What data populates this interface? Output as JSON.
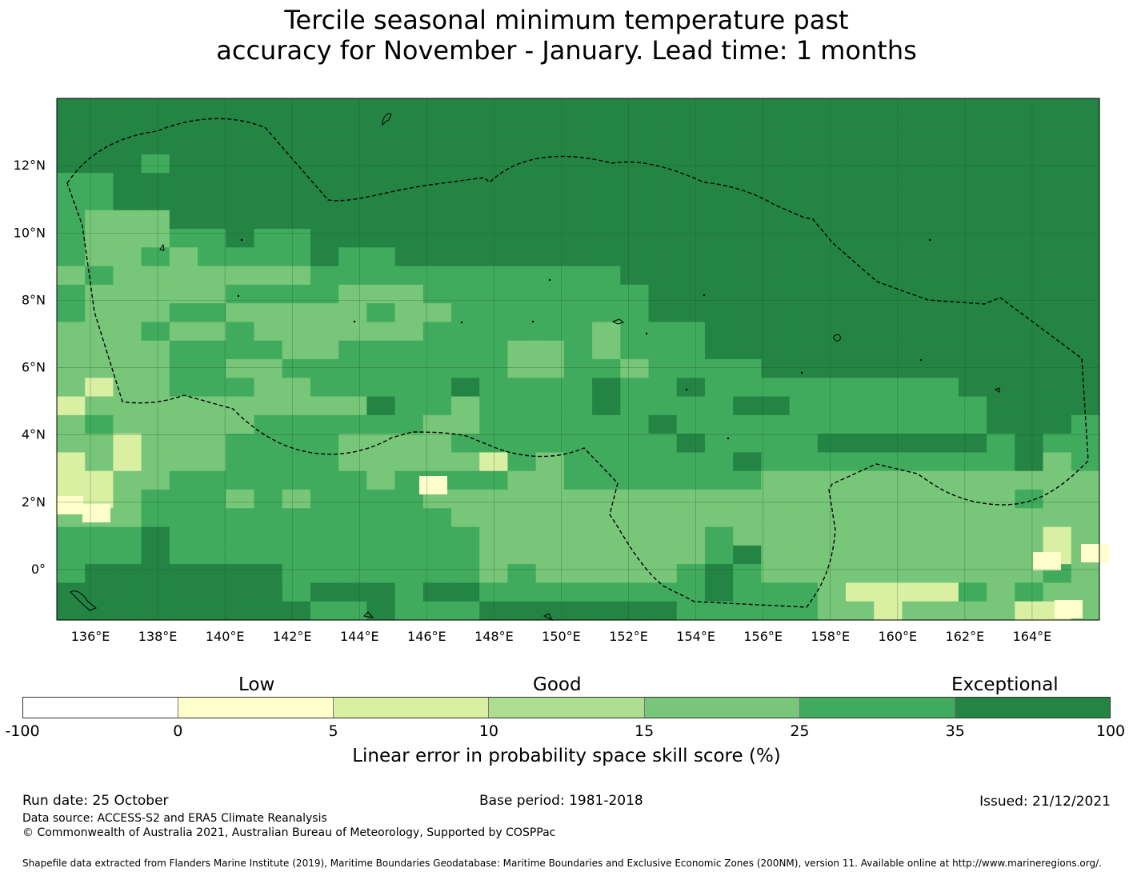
{
  "title_line1": "Tercile seasonal minimum temperature past",
  "title_line2": "accuracy for November - January. Lead time: 1 months",
  "map": {
    "lon_labels": [
      "136°E",
      "138°E",
      "140°E",
      "142°E",
      "144°E",
      "146°E",
      "148°E",
      "150°E",
      "152°E",
      "154°E",
      "156°E",
      "158°E",
      "160°E",
      "162°E",
      "164°E"
    ],
    "lat_labels": [
      "12°N",
      "10°N",
      "8°N",
      "6°N",
      "4°N",
      "2°N",
      "0°"
    ]
  },
  "colorbar": {
    "categories": [
      "Low",
      "Good",
      "Exceptional"
    ],
    "ticks": [
      "-100",
      "0",
      "5",
      "10",
      "15",
      "25",
      "35",
      "100"
    ],
    "colors": [
      "#ffffff",
      "#ffffcc",
      "#d9f0a3",
      "#addd8e",
      "#78c679",
      "#41ab5d",
      "#238443"
    ],
    "title": "Linear error in probability space skill score (%)"
  },
  "footer": {
    "run_date": "Run date: 25 October",
    "base_period": "Base period: 1981-2018",
    "issued": "Issued: 21/12/2021",
    "data_source": "Data source: ACCESS-S2 and ERA5 Climate Reanalysis",
    "copyright": "© Commonwealth of Australia 2021, Australian Bureau of Meteorology, Supported by COSPPac",
    "shapefile": "Shapefile data extracted from Flanders Marine Institute (2019), Maritime Boundaries Geodatabase: Maritime Boundaries and Exclusive Economic Zones (200NM), version 11. Available online at http://www.marineregions.org/."
  }
}
